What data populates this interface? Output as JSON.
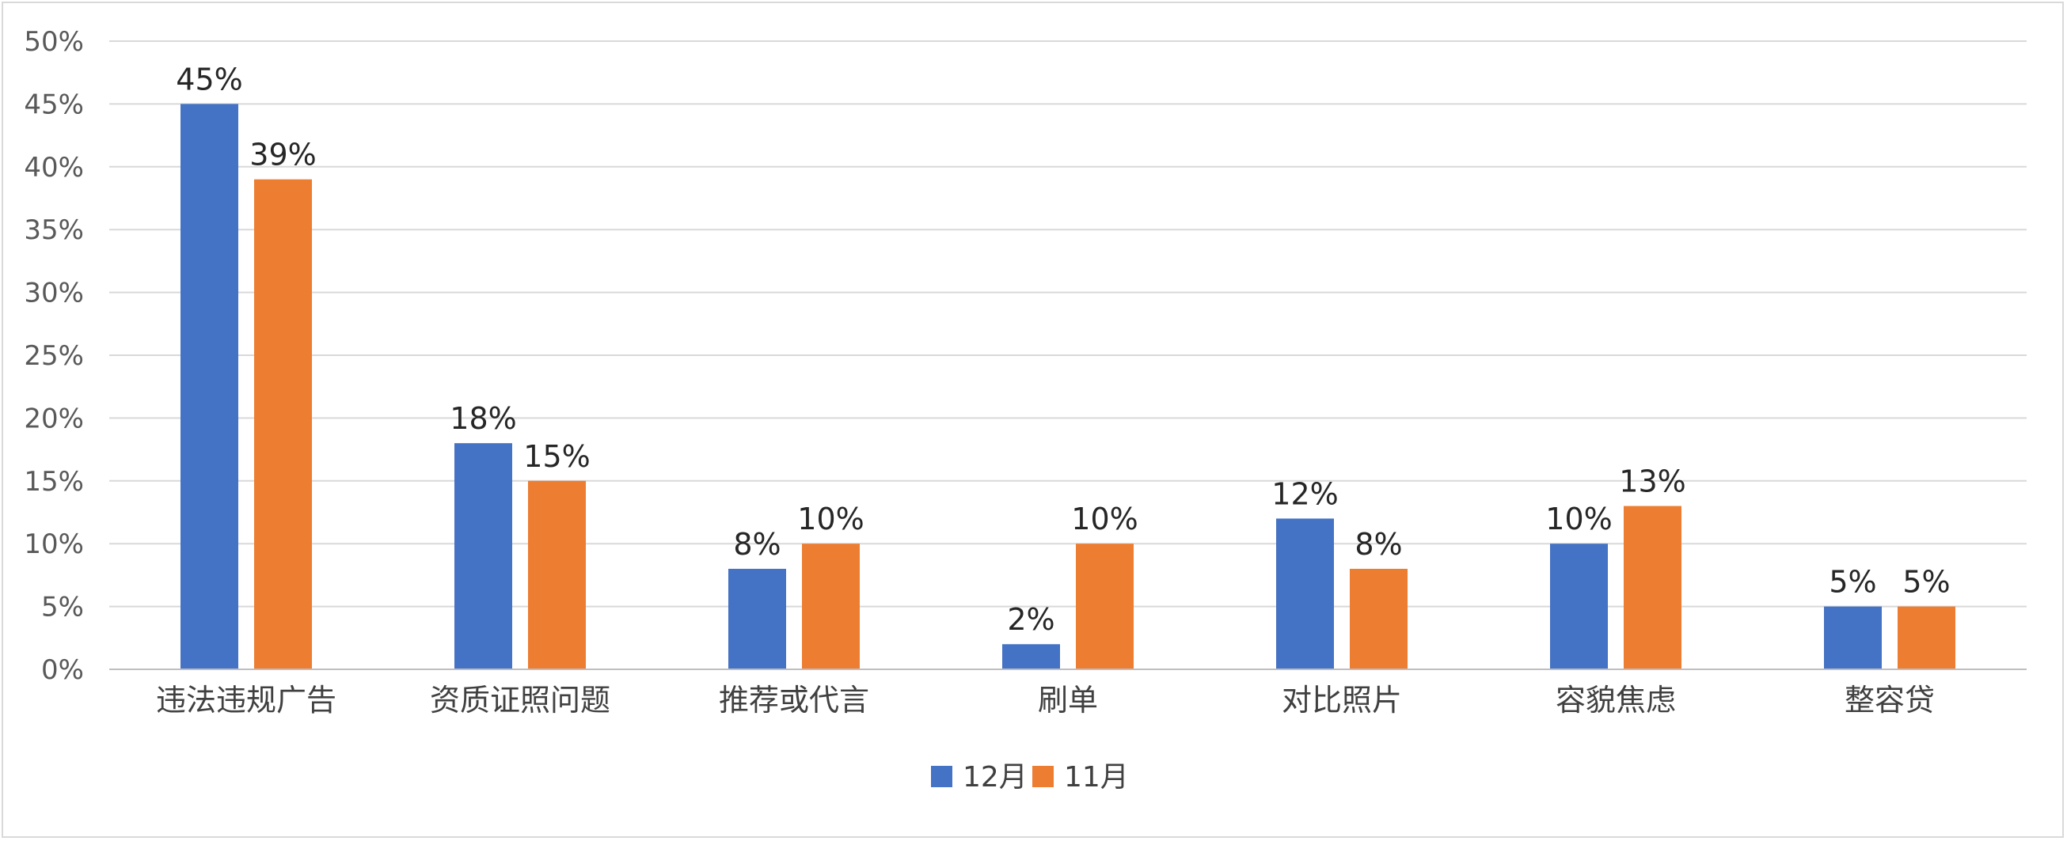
{
  "chart_data": {
    "type": "bar",
    "categories": [
      "违法违规广告",
      "资质证照问题",
      "推荐或代言",
      "刷单",
      "对比照片",
      "容貌焦虑",
      "整容贷"
    ],
    "series": [
      {
        "name": "12月",
        "color": "#4472c4",
        "values": [
          45,
          18,
          8,
          2,
          12,
          10,
          5
        ]
      },
      {
        "name": "11月",
        "color": "#ed7d31",
        "values": [
          39,
          15,
          10,
          10,
          8,
          13,
          5
        ]
      }
    ],
    "data_labels": [
      [
        "45%",
        "18%",
        "8%",
        "2%",
        "12%",
        "10%",
        "5%"
      ],
      [
        "39%",
        "15%",
        "10%",
        "10%",
        "8%",
        "13%",
        "5%"
      ]
    ],
    "y_ticks": [
      0,
      5,
      10,
      15,
      20,
      25,
      30,
      35,
      40,
      45,
      50
    ],
    "y_tick_labels": [
      "0%",
      "5%",
      "10%",
      "15%",
      "20%",
      "25%",
      "30%",
      "35%",
      "40%",
      "45%",
      "50%"
    ],
    "ylim": [
      0,
      50
    ],
    "grid": true,
    "legend": "bottom-center"
  }
}
